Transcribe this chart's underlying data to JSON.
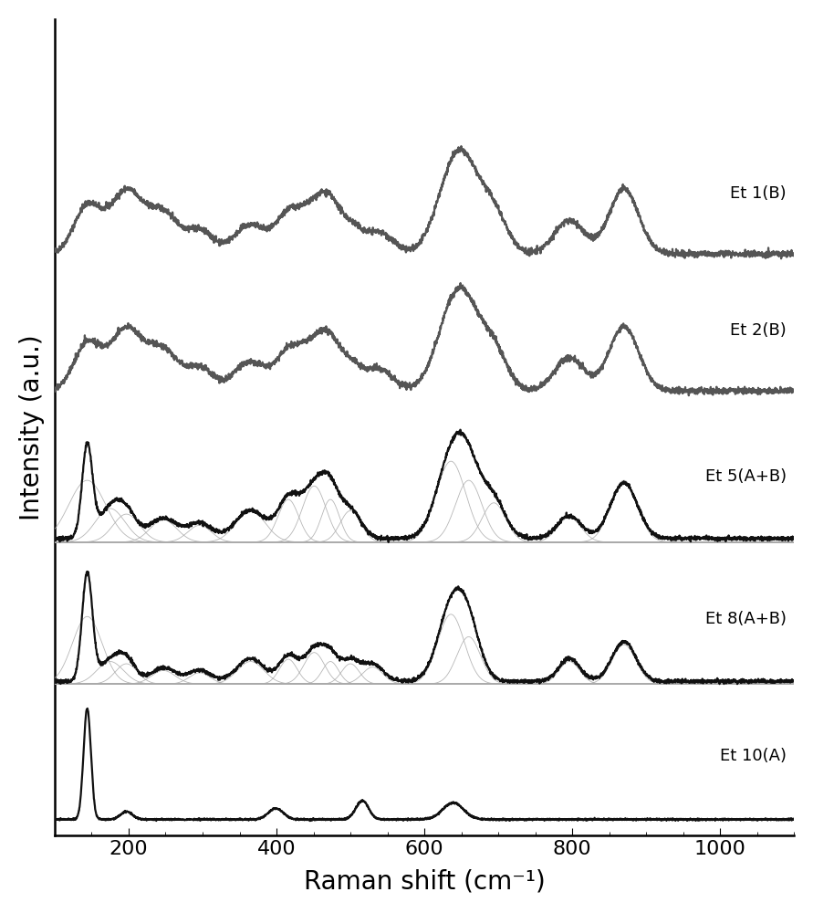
{
  "xlabel": "Raman shift (cm⁻¹)",
  "ylabel": "Intensity (a.u.)",
  "xlim": [
    100,
    1100
  ],
  "xticks": [
    200,
    400,
    600,
    800,
    1000
  ],
  "labels": [
    "Et 1(B)",
    "Et 2(B)",
    "Et 5(A+B)",
    "Et 8(A+B)",
    "Et 10(A)"
  ],
  "axis_fontsize": 20,
  "tick_fontsize": 16
}
